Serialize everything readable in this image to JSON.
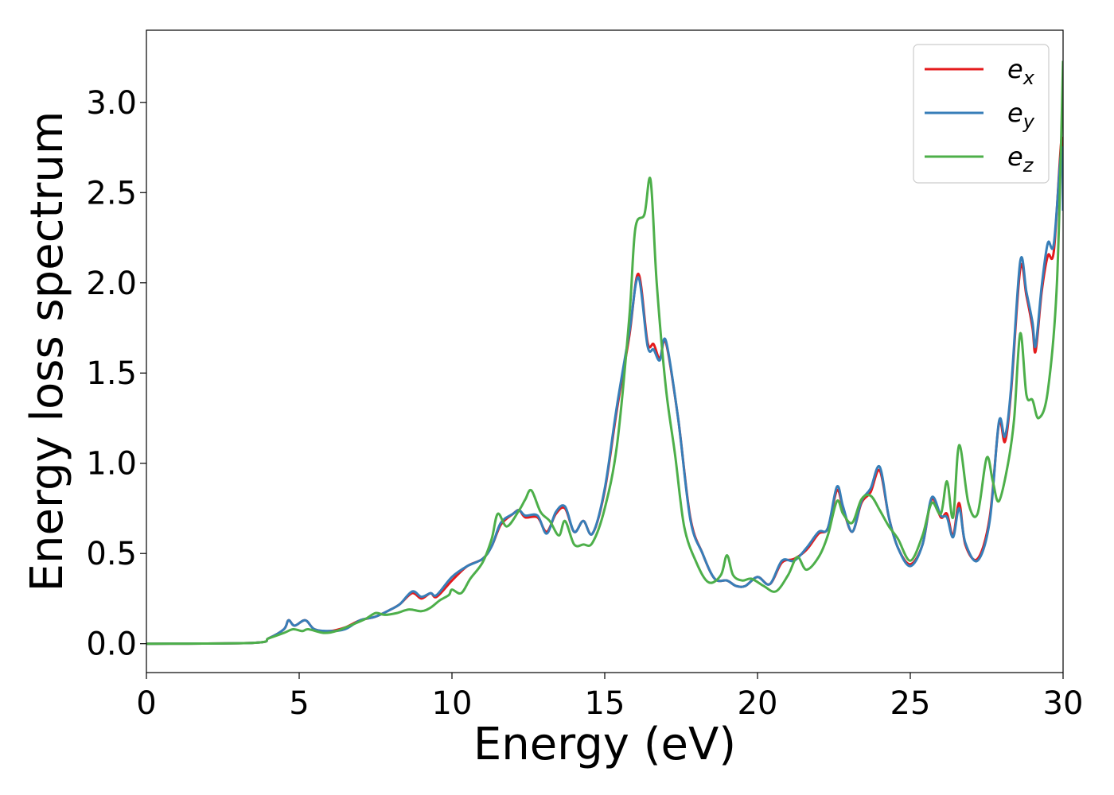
{
  "chart_data": {
    "type": "line",
    "title": "",
    "xlabel": "Energy (eV)",
    "ylabel": "Energy loss spectrum",
    "xlim": [
      0,
      30
    ],
    "ylim": [
      -0.16,
      3.4
    ],
    "xticks": [
      0,
      5,
      10,
      15,
      20,
      25,
      30
    ],
    "xtick_labels": [
      "0",
      "5",
      "10",
      "15",
      "20",
      "25",
      "30"
    ],
    "yticks": [
      0.0,
      0.5,
      1.0,
      1.5,
      2.0,
      2.5,
      3.0
    ],
    "ytick_labels": [
      "0.0",
      "0.5",
      "1.0",
      "1.5",
      "2.0",
      "2.5",
      "3.0"
    ],
    "grid": false,
    "legend_position": "top-right",
    "series": [
      {
        "name": "e_x",
        "label_base": "e",
        "label_sub": "x",
        "color": "#e41a1c",
        "points": [
          [
            0,
            0
          ],
          [
            3.5,
            0.005
          ],
          [
            4.0,
            0.03
          ],
          [
            4.5,
            0.08
          ],
          [
            4.65,
            0.13
          ],
          [
            4.85,
            0.1
          ],
          [
            5.2,
            0.13
          ],
          [
            5.5,
            0.08
          ],
          [
            6.0,
            0.07
          ],
          [
            6.5,
            0.09
          ],
          [
            7.0,
            0.13
          ],
          [
            7.5,
            0.15
          ],
          [
            8.0,
            0.19
          ],
          [
            8.3,
            0.22
          ],
          [
            8.7,
            0.28
          ],
          [
            9.0,
            0.25
          ],
          [
            9.3,
            0.28
          ],
          [
            9.5,
            0.26
          ],
          [
            10.0,
            0.35
          ],
          [
            10.5,
            0.43
          ],
          [
            11.0,
            0.47
          ],
          [
            11.3,
            0.54
          ],
          [
            11.6,
            0.66
          ],
          [
            12.0,
            0.72
          ],
          [
            12.2,
            0.74
          ],
          [
            12.4,
            0.7
          ],
          [
            12.8,
            0.7
          ],
          [
            13.1,
            0.62
          ],
          [
            13.4,
            0.72
          ],
          [
            13.7,
            0.75
          ],
          [
            14.0,
            0.62
          ],
          [
            14.3,
            0.68
          ],
          [
            14.6,
            0.61
          ],
          [
            15.0,
            0.85
          ],
          [
            15.4,
            1.3
          ],
          [
            15.8,
            1.7
          ],
          [
            16.1,
            2.05
          ],
          [
            16.4,
            1.67
          ],
          [
            16.6,
            1.66
          ],
          [
            16.8,
            1.58
          ],
          [
            17.0,
            1.67
          ],
          [
            17.4,
            1.25
          ],
          [
            17.8,
            0.7
          ],
          [
            18.2,
            0.5
          ],
          [
            18.6,
            0.36
          ],
          [
            19.0,
            0.35
          ],
          [
            19.3,
            0.32
          ],
          [
            19.6,
            0.32
          ],
          [
            20.0,
            0.37
          ],
          [
            20.4,
            0.33
          ],
          [
            20.8,
            0.45
          ],
          [
            21.2,
            0.47
          ],
          [
            21.6,
            0.52
          ],
          [
            22.0,
            0.61
          ],
          [
            22.3,
            0.64
          ],
          [
            22.6,
            0.85
          ],
          [
            22.8,
            0.75
          ],
          [
            23.1,
            0.62
          ],
          [
            23.4,
            0.78
          ],
          [
            23.7,
            0.84
          ],
          [
            24.0,
            0.96
          ],
          [
            24.3,
            0.7
          ],
          [
            24.6,
            0.53
          ],
          [
            25.0,
            0.44
          ],
          [
            25.4,
            0.55
          ],
          [
            25.7,
            0.8
          ],
          [
            26.0,
            0.7
          ],
          [
            26.2,
            0.72
          ],
          [
            26.4,
            0.6
          ],
          [
            26.6,
            0.78
          ],
          [
            26.8,
            0.55
          ],
          [
            27.2,
            0.47
          ],
          [
            27.6,
            0.7
          ],
          [
            27.9,
            1.22
          ],
          [
            28.1,
            1.12
          ],
          [
            28.3,
            1.4
          ],
          [
            28.6,
            2.08
          ],
          [
            28.8,
            1.93
          ],
          [
            29.0,
            1.75
          ],
          [
            29.1,
            1.62
          ],
          [
            29.3,
            1.95
          ],
          [
            29.5,
            2.15
          ],
          [
            29.7,
            2.18
          ],
          [
            29.95,
            2.8
          ],
          [
            30.0,
            2.45
          ]
        ]
      },
      {
        "name": "e_y",
        "label_base": "e",
        "label_sub": "y",
        "color": "#377eb8",
        "points": [
          [
            0,
            0
          ],
          [
            3.5,
            0.005
          ],
          [
            4.0,
            0.03
          ],
          [
            4.5,
            0.08
          ],
          [
            4.65,
            0.13
          ],
          [
            4.85,
            0.1
          ],
          [
            5.2,
            0.13
          ],
          [
            5.5,
            0.08
          ],
          [
            6.0,
            0.07
          ],
          [
            6.5,
            0.08
          ],
          [
            7.0,
            0.13
          ],
          [
            7.5,
            0.15
          ],
          [
            8.0,
            0.19
          ],
          [
            8.3,
            0.22
          ],
          [
            8.7,
            0.29
          ],
          [
            9.0,
            0.26
          ],
          [
            9.3,
            0.28
          ],
          [
            9.5,
            0.27
          ],
          [
            10.0,
            0.37
          ],
          [
            10.5,
            0.43
          ],
          [
            11.0,
            0.47
          ],
          [
            11.3,
            0.54
          ],
          [
            11.6,
            0.67
          ],
          [
            12.0,
            0.72
          ],
          [
            12.2,
            0.74
          ],
          [
            12.4,
            0.71
          ],
          [
            12.8,
            0.71
          ],
          [
            13.1,
            0.61
          ],
          [
            13.4,
            0.73
          ],
          [
            13.7,
            0.76
          ],
          [
            14.0,
            0.62
          ],
          [
            14.3,
            0.68
          ],
          [
            14.6,
            0.61
          ],
          [
            15.0,
            0.86
          ],
          [
            15.4,
            1.32
          ],
          [
            15.8,
            1.72
          ],
          [
            16.1,
            2.03
          ],
          [
            16.4,
            1.65
          ],
          [
            16.6,
            1.63
          ],
          [
            16.8,
            1.57
          ],
          [
            17.0,
            1.68
          ],
          [
            17.4,
            1.25
          ],
          [
            17.8,
            0.69
          ],
          [
            18.2,
            0.5
          ],
          [
            18.6,
            0.36
          ],
          [
            19.0,
            0.35
          ],
          [
            19.3,
            0.32
          ],
          [
            19.6,
            0.32
          ],
          [
            20.0,
            0.37
          ],
          [
            20.4,
            0.33
          ],
          [
            20.8,
            0.46
          ],
          [
            21.2,
            0.46
          ],
          [
            21.6,
            0.53
          ],
          [
            22.0,
            0.62
          ],
          [
            22.3,
            0.64
          ],
          [
            22.6,
            0.87
          ],
          [
            22.8,
            0.76
          ],
          [
            23.1,
            0.62
          ],
          [
            23.4,
            0.79
          ],
          [
            23.7,
            0.86
          ],
          [
            24.0,
            0.98
          ],
          [
            24.3,
            0.7
          ],
          [
            24.6,
            0.53
          ],
          [
            25.0,
            0.43
          ],
          [
            25.4,
            0.55
          ],
          [
            25.7,
            0.81
          ],
          [
            26.0,
            0.71
          ],
          [
            26.2,
            0.7
          ],
          [
            26.4,
            0.59
          ],
          [
            26.6,
            0.75
          ],
          [
            26.8,
            0.56
          ],
          [
            27.2,
            0.46
          ],
          [
            27.6,
            0.68
          ],
          [
            27.9,
            1.23
          ],
          [
            28.1,
            1.15
          ],
          [
            28.3,
            1.42
          ],
          [
            28.6,
            2.12
          ],
          [
            28.8,
            1.95
          ],
          [
            29.0,
            1.78
          ],
          [
            29.1,
            1.65
          ],
          [
            29.3,
            1.98
          ],
          [
            29.5,
            2.22
          ],
          [
            29.7,
            2.22
          ],
          [
            29.95,
            2.75
          ],
          [
            30.0,
            2.4
          ]
        ]
      },
      {
        "name": "e_z",
        "label_base": "e",
        "label_sub": "z",
        "color": "#4daf4a",
        "points": [
          [
            0,
            0
          ],
          [
            3.5,
            0.005
          ],
          [
            4.0,
            0.03
          ],
          [
            4.5,
            0.06
          ],
          [
            4.8,
            0.08
          ],
          [
            5.1,
            0.07
          ],
          [
            5.3,
            0.08
          ],
          [
            5.8,
            0.06
          ],
          [
            6.2,
            0.07
          ],
          [
            6.8,
            0.11
          ],
          [
            7.2,
            0.14
          ],
          [
            7.5,
            0.17
          ],
          [
            7.8,
            0.16
          ],
          [
            8.2,
            0.17
          ],
          [
            8.6,
            0.19
          ],
          [
            9.0,
            0.18
          ],
          [
            9.3,
            0.2
          ],
          [
            9.6,
            0.24
          ],
          [
            9.9,
            0.27
          ],
          [
            10.0,
            0.3
          ],
          [
            10.3,
            0.28
          ],
          [
            10.6,
            0.36
          ],
          [
            11.0,
            0.45
          ],
          [
            11.3,
            0.58
          ],
          [
            11.5,
            0.72
          ],
          [
            11.8,
            0.65
          ],
          [
            12.2,
            0.74
          ],
          [
            12.4,
            0.8
          ],
          [
            12.6,
            0.85
          ],
          [
            12.9,
            0.73
          ],
          [
            13.2,
            0.68
          ],
          [
            13.5,
            0.6
          ],
          [
            13.7,
            0.68
          ],
          [
            14.0,
            0.55
          ],
          [
            14.3,
            0.55
          ],
          [
            14.6,
            0.56
          ],
          [
            15.0,
            0.75
          ],
          [
            15.4,
            1.1
          ],
          [
            15.8,
            1.8
          ],
          [
            16.0,
            2.3
          ],
          [
            16.3,
            2.38
          ],
          [
            16.5,
            2.57
          ],
          [
            16.7,
            2.0
          ],
          [
            17.0,
            1.42
          ],
          [
            17.3,
            1.05
          ],
          [
            17.6,
            0.65
          ],
          [
            18.0,
            0.45
          ],
          [
            18.4,
            0.34
          ],
          [
            18.8,
            0.38
          ],
          [
            19.0,
            0.49
          ],
          [
            19.2,
            0.38
          ],
          [
            19.5,
            0.35
          ],
          [
            19.8,
            0.36
          ],
          [
            20.2,
            0.32
          ],
          [
            20.6,
            0.29
          ],
          [
            21.0,
            0.38
          ],
          [
            21.3,
            0.48
          ],
          [
            21.6,
            0.41
          ],
          [
            22.0,
            0.48
          ],
          [
            22.3,
            0.6
          ],
          [
            22.6,
            0.79
          ],
          [
            22.8,
            0.72
          ],
          [
            23.1,
            0.67
          ],
          [
            23.4,
            0.8
          ],
          [
            23.7,
            0.82
          ],
          [
            24.0,
            0.74
          ],
          [
            24.3,
            0.65
          ],
          [
            24.6,
            0.58
          ],
          [
            25.0,
            0.46
          ],
          [
            25.4,
            0.6
          ],
          [
            25.7,
            0.78
          ],
          [
            26.0,
            0.72
          ],
          [
            26.2,
            0.9
          ],
          [
            26.4,
            0.7
          ],
          [
            26.6,
            1.1
          ],
          [
            26.9,
            0.78
          ],
          [
            27.2,
            0.72
          ],
          [
            27.5,
            1.03
          ],
          [
            27.7,
            0.9
          ],
          [
            27.9,
            0.79
          ],
          [
            28.2,
            1.0
          ],
          [
            28.4,
            1.25
          ],
          [
            28.6,
            1.72
          ],
          [
            28.8,
            1.38
          ],
          [
            29.0,
            1.35
          ],
          [
            29.2,
            1.25
          ],
          [
            29.5,
            1.4
          ],
          [
            29.8,
            2.0
          ],
          [
            30.0,
            3.23
          ]
        ]
      }
    ]
  }
}
